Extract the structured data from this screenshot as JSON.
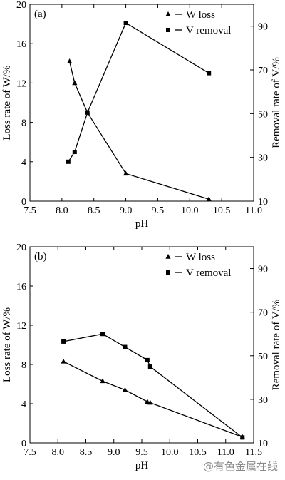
{
  "watermark": "@有色金属在线",
  "chart_data": [
    {
      "type": "line",
      "panel_label": "(a)",
      "xlabel": "pH",
      "ylabel": "Loss rate of W/%",
      "y2label": "Removal rate of V/%",
      "xlim": [
        7.5,
        11.0
      ],
      "ylim": [
        0,
        20
      ],
      "y2lim": [
        10,
        100
      ],
      "xticks": [
        "7.5",
        "8.0",
        "8.5",
        "9.0",
        "9.5",
        "10.0",
        "10.5",
        "11.0"
      ],
      "yticks": [
        "0",
        "4",
        "8",
        "12",
        "16",
        "20"
      ],
      "y2ticks": [
        "10",
        "30",
        "50",
        "70",
        "90"
      ],
      "legend_position": "top-right",
      "grid": false,
      "series": [
        {
          "name": "W loss",
          "axis": "left",
          "marker": "triangle",
          "x": [
            8.12,
            8.2,
            8.4,
            9.0,
            10.3
          ],
          "y": [
            14.2,
            12.0,
            9.0,
            2.8,
            0.2
          ]
        },
        {
          "name": "V removal",
          "axis": "right",
          "marker": "square",
          "x": [
            8.1,
            8.2,
            8.4,
            9.0,
            10.3
          ],
          "y": [
            28.0,
            32.5,
            50.5,
            91.5,
            68.5
          ]
        }
      ]
    },
    {
      "type": "line",
      "panel_label": "(b)",
      "xlabel": "pH",
      "ylabel": "Loss rate of W/%",
      "y2label": "Removal rate of V/%",
      "xlim": [
        7.5,
        11.5
      ],
      "ylim": [
        0,
        20
      ],
      "y2lim": [
        10,
        100
      ],
      "xticks": [
        "7.5",
        "8.0",
        "8.5",
        "9.0",
        "9.5",
        "10.0",
        "10.5",
        "11.0",
        "11.5"
      ],
      "yticks": [
        "0",
        "4",
        "8",
        "12",
        "16",
        "20"
      ],
      "y2ticks": [
        "10",
        "30",
        "50",
        "70",
        "90"
      ],
      "legend_position": "top-right",
      "grid": false,
      "series": [
        {
          "name": "W loss",
          "axis": "left",
          "marker": "triangle",
          "x": [
            8.1,
            8.8,
            9.2,
            9.6,
            9.65,
            11.3
          ],
          "y": [
            8.3,
            6.3,
            5.4,
            4.2,
            4.1,
            0.6
          ]
        },
        {
          "name": "V removal",
          "axis": "right",
          "marker": "square",
          "x": [
            8.1,
            8.8,
            9.2,
            9.6,
            9.65,
            11.3
          ],
          "y": [
            56.5,
            60.0,
            54.0,
            48.0,
            45.0,
            12.5
          ]
        }
      ]
    }
  ]
}
